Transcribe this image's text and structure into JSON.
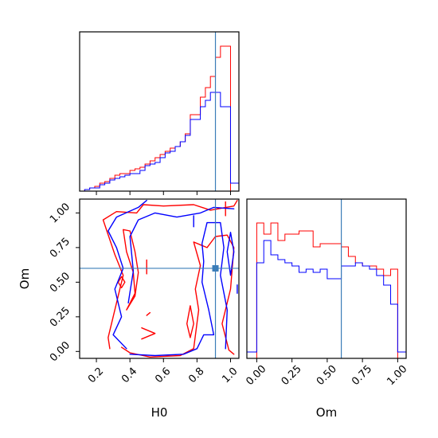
{
  "chart_data": {
    "type": "corner",
    "parameters": [
      "H0",
      "Om"
    ],
    "truths": {
      "H0": 0.91,
      "Om": 0.6
    },
    "truth_color": "#3b7db8",
    "series": [
      {
        "color": "#ff0000"
      },
      {
        "color": "#0000ff"
      }
    ],
    "panels": [
      {
        "id": "hist-H0",
        "type": "histogram",
        "x_range": [
          0.1,
          1.05
        ],
        "y_range": [
          0,
          1
        ],
        "x_ticks": [
          0.2,
          0.4,
          0.6,
          0.8,
          1.0
        ],
        "x_tick_labels_shown": false,
        "y_axis_shown": false,
        "bin_edges": [
          0.1,
          0.13,
          0.16,
          0.19,
          0.22,
          0.25,
          0.28,
          0.31,
          0.34,
          0.37,
          0.4,
          0.43,
          0.46,
          0.49,
          0.52,
          0.55,
          0.58,
          0.61,
          0.64,
          0.67,
          0.7,
          0.73,
          0.76,
          0.79,
          0.82,
          0.85,
          0.88,
          0.91,
          0.94,
          0.97,
          1.0,
          1.03,
          1.05
        ],
        "counts": [
          [
            0,
            0.01,
            0.02,
            0.03,
            0.05,
            0.06,
            0.08,
            0.1,
            0.11,
            0.11,
            0.13,
            0.14,
            0.15,
            0.17,
            0.19,
            0.21,
            0.23,
            0.25,
            0.27,
            0.28,
            0.31,
            0.36,
            0.48,
            0.48,
            0.59,
            0.65,
            0.72,
            0.84,
            0.91,
            0.91,
            0,
            0
          ],
          [
            0,
            0.01,
            0.02,
            0.02,
            0.04,
            0.05,
            0.07,
            0.08,
            0.09,
            0.1,
            0.11,
            0.11,
            0.13,
            0.16,
            0.17,
            0.18,
            0.21,
            0.24,
            0.25,
            0.28,
            0.31,
            0.35,
            0.45,
            0.45,
            0.53,
            0.57,
            0.62,
            0.62,
            0.53,
            0.53,
            0.05,
            0.05
          ]
        ]
      },
      {
        "id": "hist-Om",
        "type": "histogram",
        "x_range": [
          -0.07,
          1.06
        ],
        "y_range": [
          0,
          1
        ],
        "x_ticks": [
          0.0,
          0.25,
          0.5,
          0.75,
          1.0
        ],
        "x_tick_labels": [
          "0.00",
          "0.25",
          "0.50",
          "0.75",
          "1.00"
        ],
        "y_axis_shown": false,
        "bin_edges": [
          -0.07,
          0.0,
          0.05,
          0.1,
          0.15,
          0.2,
          0.25,
          0.3,
          0.35,
          0.4,
          0.45,
          0.5,
          0.55,
          0.6,
          0.65,
          0.7,
          0.75,
          0.8,
          0.85,
          0.9,
          0.95,
          1.0,
          1.06
        ],
        "counts": [
          [
            0,
            0.85,
            0.78,
            0.85,
            0.74,
            0.78,
            0.78,
            0.8,
            0.8,
            0.7,
            0.72,
            0.72,
            0.72,
            0.7,
            0.64,
            0.6,
            0.58,
            0.58,
            0.56,
            0.52,
            0.56,
            0
          ],
          [
            0.04,
            0.6,
            0.74,
            0.65,
            0.62,
            0.6,
            0.58,
            0.54,
            0.56,
            0.54,
            0.56,
            0.5,
            0.5,
            0.58,
            0.58,
            0.6,
            0.58,
            0.56,
            0.52,
            0.46,
            0.34,
            0.04
          ]
        ]
      },
      {
        "id": "joint-H0-Om",
        "type": "contour",
        "x": "H0",
        "y": "Om",
        "x_range": [
          0.1,
          1.05
        ],
        "y_range": [
          -0.05,
          1.1
        ],
        "x_ticks": [
          0.2,
          0.4,
          0.6,
          0.8,
          1.0
        ],
        "x_tick_labels": [
          "0.2",
          "0.4",
          "0.6",
          "0.8",
          "1.0"
        ],
        "y_ticks": [
          0.0,
          0.25,
          0.5,
          0.75,
          1.0
        ],
        "y_tick_labels": [
          "0.00",
          "0.25",
          "0.50",
          "0.75",
          "1.00"
        ],
        "xlabel": "H0",
        "ylabel": "Om",
        "contours": [
          {
            "series": 0,
            "paths": [
              [
                [
                  0.28,
                  0.02
                ],
                [
                  0.27,
                  0.1
                ],
                [
                  0.3,
                  0.25
                ],
                [
                  0.33,
                  0.4
                ],
                [
                  0.36,
                  0.55
                ],
                [
                  0.31,
                  0.7
                ],
                [
                  0.24,
                  0.95
                ],
                [
                  0.32,
                  1.01
                ],
                [
                  0.44,
                  1.0
                ],
                [
                  0.48,
                  1.06
                ],
                [
                  0.6,
                  1.05
                ],
                [
                  0.78,
                  1.06
                ],
                [
                  0.88,
                  1.02
                ],
                [
                  1.02,
                  1.05
                ],
                [
                  1.04,
                  1.09
                ]
              ],
              [
                [
                  0.35,
                  0.03
                ],
                [
                  0.4,
                  -0.01
                ],
                [
                  0.52,
                  -0.04
                ],
                [
                  0.7,
                  -0.03
                ],
                [
                  0.78,
                  0.02
                ],
                [
                  0.81,
                  0.3
                ],
                [
                  0.79,
                  0.45
                ],
                [
                  0.82,
                  0.62
                ],
                [
                  0.78,
                  0.79
                ],
                [
                  0.86,
                  0.75
                ],
                [
                  0.91,
                  0.83
                ],
                [
                  0.98,
                  0.84
                ],
                [
                  1.02,
                  0.75
                ],
                [
                  1.0,
                  0.45
                ],
                [
                  0.95,
                  0.2
                ],
                [
                  0.99,
                  0.01
                ],
                [
                  1.02,
                  -0.02
                ]
              ],
              [
                [
                  0.38,
                  0.3
                ],
                [
                  0.43,
                  0.42
                ],
                [
                  0.42,
                  0.57
                ],
                [
                  0.38,
                  0.72
                ],
                [
                  0.36,
                  0.88
                ],
                [
                  0.4,
                  0.87
                ],
                [
                  0.43,
                  0.72
                ],
                [
                  0.45,
                  0.57
                ],
                [
                  0.43,
                  0.4
                ],
                [
                  0.38,
                  0.3
                ]
              ],
              [
                [
                  0.74,
                  0.2
                ],
                [
                  0.76,
                  0.33
                ],
                [
                  0.78,
                  0.2
                ],
                [
                  0.76,
                  0.1
                ],
                [
                  0.74,
                  0.2
                ]
              ],
              [
                [
                  0.33,
                  0.5
                ],
                [
                  0.35,
                  0.54
                ],
                [
                  0.37,
                  0.5
                ],
                [
                  0.35,
                  0.46
                ],
                [
                  0.33,
                  0.5
                ]
              ],
              [
                [
                  0.5,
                  0.56
                ],
                [
                  0.5,
                  0.66
                ]
              ],
              [
                [
                  0.97,
                  0.98
                ],
                [
                  0.97,
                  1.08
                ]
              ],
              [
                [
                  0.47,
                  0.09
                ],
                [
                  0.55,
                  0.13
                ],
                [
                  0.47,
                  0.17
                ]
              ],
              [
                [
                  0.5,
                  0.26
                ],
                [
                  0.52,
                  0.28
                ]
              ]
            ]
          },
          {
            "series": 1,
            "paths": [
              [
                [
                  0.38,
                  0.02
                ],
                [
                  0.3,
                  0.12
                ],
                [
                  0.35,
                  0.25
                ],
                [
                  0.31,
                  0.45
                ],
                [
                  0.36,
                  0.6
                ],
                [
                  0.32,
                  0.75
                ],
                [
                  0.27,
                  0.87
                ],
                [
                  0.32,
                  0.97
                ],
                [
                  0.45,
                  1.04
                ],
                [
                  0.5,
                  1.09
                ]
              ],
              [
                [
                  0.39,
                  0.35
                ],
                [
                  0.42,
                  0.58
                ],
                [
                  0.4,
                  0.83
                ],
                [
                  0.45,
                  0.95
                ],
                [
                  0.55,
                  1.0
                ],
                [
                  0.68,
                  0.97
                ],
                [
                  0.82,
                  1.0
                ],
                [
                  0.9,
                  1.04
                ],
                [
                  1.02,
                  1.03
                ]
              ],
              [
                [
                  0.4,
                  -0.02
                ],
                [
                  0.55,
                  -0.03
                ],
                [
                  0.72,
                  -0.02
                ],
                [
                  0.8,
                  0.02
                ],
                [
                  0.84,
                  0.12
                ],
                [
                  0.9,
                  0.12
                ],
                [
                  0.87,
                  0.3
                ],
                [
                  0.83,
                  0.5
                ],
                [
                  0.84,
                  0.65
                ],
                [
                  0.83,
                  0.78
                ],
                [
                  0.86,
                  0.93
                ],
                [
                  0.94,
                  0.93
                ],
                [
                  0.96,
                  0.75
                ],
                [
                  0.94,
                  0.55
                ],
                [
                  0.98,
                  0.3
                ],
                [
                  0.97,
                  0.02
                ]
              ],
              [
                [
                  0.78,
                  0.9
                ],
                [
                  0.78,
                  0.98
                ]
              ],
              [
                [
                  0.98,
                  0.72
                ],
                [
                  1.0,
                  0.86
                ],
                [
                  1.02,
                  0.72
                ],
                [
                  1.0,
                  0.55
                ],
                [
                  0.98,
                  0.72
                ]
              ],
              [
                [
                  1.04,
                  0.42
                ],
                [
                  1.04,
                  0.48
                ]
              ]
            ]
          }
        ]
      }
    ]
  }
}
